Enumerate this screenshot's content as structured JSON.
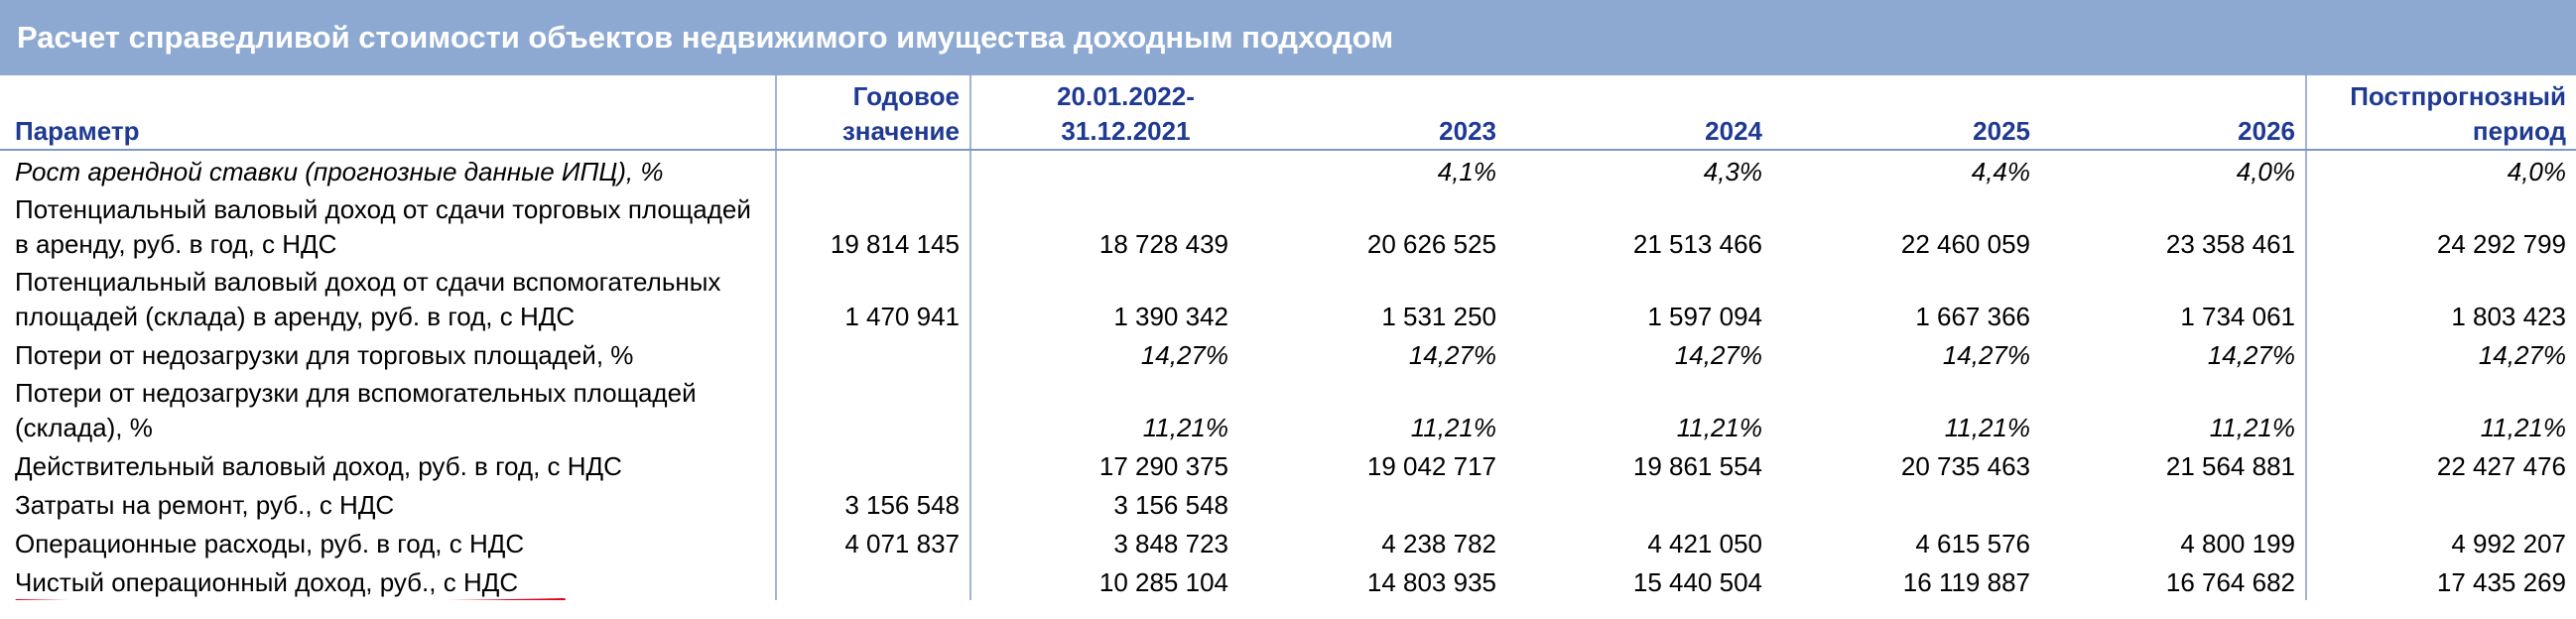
{
  "title": "Расчет справедливой стоимости объектов недвижимого имущества доходным подходом",
  "columns": [
    "Параметр",
    "Годовое значение",
    "20.01.2022-31.12.2021",
    "2023",
    "2024",
    "2025",
    "2026",
    "Постпрогнозный период"
  ],
  "header_lines": {
    "annual": [
      "Годовое",
      "значение"
    ],
    "period": [
      "20.01.2022-",
      "31.12.2021"
    ],
    "post": [
      "Постпрогнозный",
      "период"
    ]
  },
  "rows": [
    {
      "label": "Рост арендной ставки (прогнозные данные ИПЦ), %",
      "values": [
        "",
        "",
        "4,1%",
        "4,3%",
        "4,4%",
        "4,0%",
        "4,0%"
      ]
    },
    {
      "label": "Потенциальный валовый доход от сдачи торговых площадей в аренду, руб. в год, с НДС",
      "values": [
        "19 814 145",
        "18 728 439",
        "20 626 525",
        "21 513 466",
        "22 460 059",
        "23 358 461",
        "24 292 799"
      ]
    },
    {
      "label": "Потенциальный валовый доход от сдачи вспомогательных площадей (склада) в аренду, руб. в год, с НДС",
      "values": [
        "1 470 941",
        "1 390 342",
        "1 531 250",
        "1 597 094",
        "1 667 366",
        "1 734 061",
        "1 803 423"
      ]
    },
    {
      "label": "Потери от недозагрузки для торговых площадей, %",
      "values": [
        "",
        "14,27%",
        "14,27%",
        "14,27%",
        "14,27%",
        "14,27%",
        "14,27%"
      ]
    },
    {
      "label": "Потери от недозагрузки для вспомогательных площадей (склада), %",
      "values": [
        "",
        "11,21%",
        "11,21%",
        "11,21%",
        "11,21%",
        "11,21%",
        "11,21%"
      ]
    },
    {
      "label": "Действительный валовый доход, руб. в год, с НДС",
      "values": [
        "",
        "17 290 375",
        "19 042 717",
        "19 861 554",
        "20 735 463",
        "21 564 881",
        "22 427 476"
      ]
    },
    {
      "label": "Затраты на ремонт, руб., с НДС",
      "values": [
        "3 156 548",
        "3 156 548",
        "",
        "",
        "",
        "",
        ""
      ]
    },
    {
      "label": "Операционные расходы, руб. в год, с НДС",
      "values": [
        "4 071 837",
        "3 848 723",
        "4 238 782",
        "4 421 050",
        "4 615 576",
        "4 800 199",
        "4 992 207"
      ]
    },
    {
      "label": "Чистый операционный доход, руб., с НДС",
      "values": [
        "",
        "10 285 104",
        "14 803 935",
        "15 440 504",
        "16 119 887",
        "16 764 682",
        "17 435 269"
      ]
    }
  ],
  "colors": {
    "banner": "#8ea9d1",
    "header_text": "#1f3a93",
    "annotation_underline": "#e0001b"
  }
}
